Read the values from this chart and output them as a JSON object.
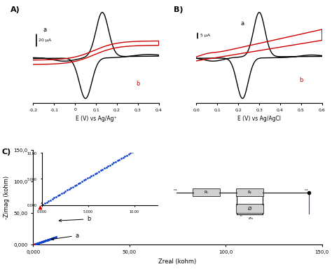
{
  "panel_A": {
    "label": "A)",
    "xlabel": "E (V) vs Ag/Ag⁺",
    "scalebar_label": "20 μA",
    "xlim": [
      -0.2,
      0.4
    ],
    "xticks": [
      -0.2,
      -0.1,
      0.0,
      0.1,
      0.2,
      0.3,
      0.4
    ],
    "xticklabels": [
      "-0,2",
      "-0,1",
      "0",
      "0,1",
      "0,2",
      "0,3",
      "0,4"
    ],
    "curve_a_label": "a",
    "curve_b_label": "b"
  },
  "panel_B": {
    "label": "B)",
    "xlabel": "E (V) vs Ag/AgCl",
    "scalebar_label": "5 μA",
    "xlim": [
      0.0,
      0.6
    ],
    "xticks": [
      0.0,
      0.1,
      0.2,
      0.3,
      0.4,
      0.5,
      0.6
    ],
    "xticklabels": [
      "0,0",
      "0,1",
      "0,2",
      "0,3",
      "0,4",
      "0,5",
      "0,6"
    ],
    "curve_a_label": "a",
    "curve_b_label": "b"
  },
  "panel_C": {
    "label": "C)",
    "xlabel": "Zreal (kohm)",
    "ylabel": "-Zimag (kohm)",
    "xlim": [
      0,
      150
    ],
    "ylim": [
      0,
      150
    ],
    "xticks": [
      0.0,
      50.0,
      100.0,
      150.0
    ],
    "yticks": [
      0.0,
      50.0,
      100.0,
      150.0
    ],
    "xticklabels": [
      "0,000",
      "50,00",
      "100,0",
      "150,0"
    ],
    "yticklabels": [
      "0,000",
      "50,00",
      "100,0",
      "150,0"
    ],
    "curve_a_label": "a",
    "curve_b_label": "b"
  },
  "colors": {
    "black": "#000000",
    "red": "#cc0000",
    "blue": "#1144cc"
  }
}
